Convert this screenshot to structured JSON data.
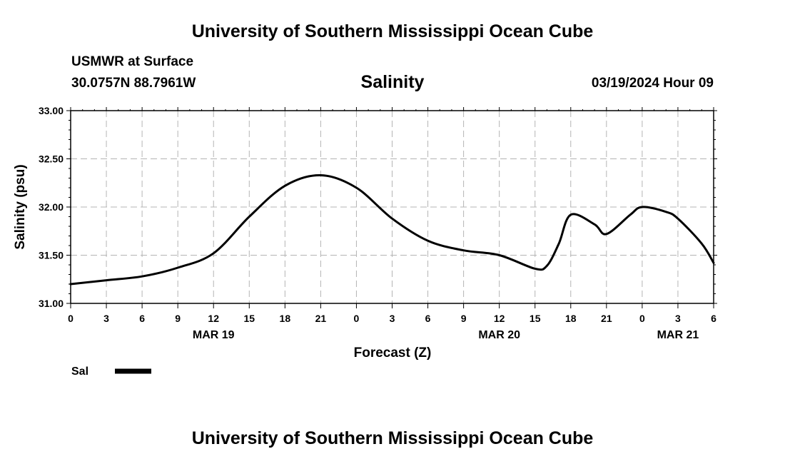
{
  "header": {
    "title": "University of Southern Mississippi Ocean Cube",
    "station": "USMWR at Surface",
    "coords": "30.0757N  88.7961W",
    "plot_title": "Salinity",
    "datetime": "03/19/2024 Hour 09",
    "footer_title": "University of Southern Mississippi Ocean Cube"
  },
  "chart_data": {
    "type": "line",
    "xlabel": "Forecast (Z)",
    "ylabel": "Salinity (psu)",
    "xlim": [
      0,
      54
    ],
    "ylim": [
      31.0,
      33.0
    ],
    "grid": true,
    "x_tick_values": [
      0,
      3,
      6,
      9,
      12,
      15,
      18,
      21,
      24,
      27,
      30,
      33,
      36,
      39,
      42,
      45,
      48,
      51,
      54
    ],
    "x_tick_labels": [
      "0",
      "3",
      "6",
      "9",
      "12",
      "15",
      "18",
      "21",
      "0",
      "3",
      "6",
      "9",
      "12",
      "15",
      "18",
      "21",
      "0",
      "3",
      "6"
    ],
    "date_labels": [
      {
        "x": 12,
        "label": "MAR 19"
      },
      {
        "x": 36,
        "label": "MAR 20"
      },
      {
        "x": 51,
        "label": "MAR 21"
      }
    ],
    "y_ticks": [
      {
        "value": 31.0,
        "label": "31.00"
      },
      {
        "value": 31.5,
        "label": "31.50"
      },
      {
        "value": 32.0,
        "label": "32.00"
      },
      {
        "value": 32.5,
        "label": "32.50"
      },
      {
        "value": 33.0,
        "label": "33.00"
      }
    ],
    "legend_position": "bottom-left",
    "series": [
      {
        "name": "Sal",
        "color": "#000000",
        "x": [
          0,
          3,
          6,
          9,
          12,
          15,
          18,
          21,
          24,
          27,
          30,
          33,
          36,
          39,
          40,
          41,
          42,
          44,
          45,
          47,
          48,
          50,
          51,
          53,
          54
        ],
        "y": [
          31.2,
          31.24,
          31.28,
          31.37,
          31.52,
          31.9,
          32.22,
          32.33,
          32.2,
          31.88,
          31.65,
          31.55,
          31.5,
          31.36,
          31.39,
          31.62,
          31.92,
          31.82,
          31.72,
          31.92,
          32.0,
          31.95,
          31.88,
          31.62,
          31.42
        ]
      }
    ]
  }
}
